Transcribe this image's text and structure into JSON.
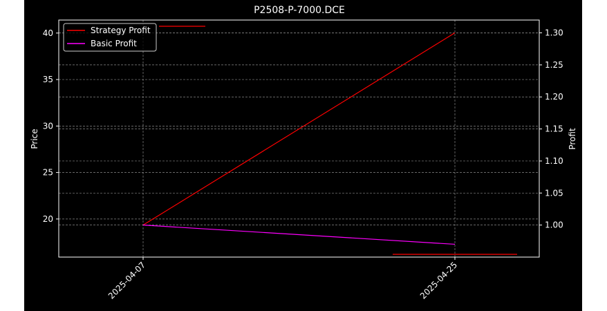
{
  "chart_data": {
    "type": "line",
    "title": "P2508-P-7000.DCE",
    "xlabel": "",
    "ylabel": "Price",
    "y2label": "Profit",
    "x": [
      "2025-04-07",
      "2025-04-25"
    ],
    "x_ticks": [
      "2025-04-07",
      "2025-04-25"
    ],
    "ylim": [
      15.9,
      41.4
    ],
    "y_ticks": [
      20,
      25,
      30,
      35,
      40
    ],
    "y2lim": [
      0.95,
      1.32
    ],
    "y2_ticks": [
      1.0,
      1.05,
      1.1,
      1.15,
      1.2,
      1.25,
      1.3
    ],
    "y2_tick_labels": [
      "1.00",
      "1.05",
      "1.10",
      "1.15",
      "1.20",
      "1.25",
      "1.30"
    ],
    "grid": true,
    "legend": {
      "placement": "top-left"
    },
    "background": "#000000",
    "series": [
      {
        "name": "Strategy Profit",
        "axis": "right",
        "color": "#ff0000",
        "values": [
          1.0,
          1.3
        ]
      },
      {
        "name": "Basic Profit",
        "axis": "right",
        "color": "#ff00ff",
        "values": [
          1.0,
          0.97
        ]
      }
    ]
  }
}
